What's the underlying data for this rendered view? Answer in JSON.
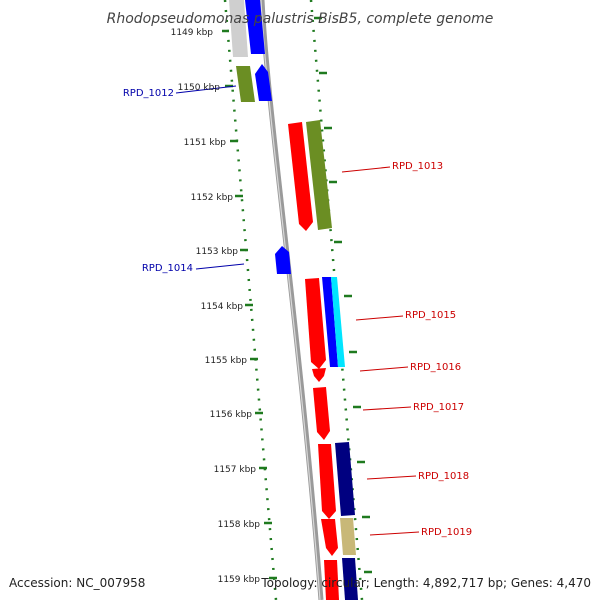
{
  "title": "Rhodopseudomonas palustris BisB5, complete genome",
  "accession_label": "Accession: NC_007958",
  "topology_label": "Topology: circular; Length: 4,892,717 bp; Genes: 4,470",
  "colors": {
    "backbone": "#9a9a9a",
    "tick_dot": "#1f7a1f",
    "label_forward": "#0000aa",
    "label_reverse": "#cc0000",
    "gene_red": "#ff0000",
    "gene_blue": "#0000ff",
    "gene_olive": "#6b8e23",
    "gene_navy": "#000080",
    "gene_cyan": "#00e5ff",
    "gene_khaki": "#c8b878",
    "gene_grey": "#cfcfcf"
  },
  "kbp_labels": [
    "1149 kbp",
    "1150 kbp",
    "1151 kbp",
    "1152 kbp",
    "1153 kbp",
    "1154 kbp",
    "1155 kbp",
    "1156 kbp",
    "1157 kbp",
    "1158 kbp",
    "1159 kbp"
  ],
  "gene_labels": [
    {
      "id": "g1012",
      "text": "RPD_1012",
      "color": "label_forward"
    },
    {
      "id": "g1013",
      "text": "RPD_1013",
      "color": "label_reverse"
    },
    {
      "id": "g1014",
      "text": "RPD_1014",
      "color": "label_forward"
    },
    {
      "id": "g1015",
      "text": "RPD_1015",
      "color": "label_reverse"
    },
    {
      "id": "g1016",
      "text": "RPD_1016",
      "color": "label_reverse"
    },
    {
      "id": "g1017",
      "text": "RPD_1017",
      "color": "label_reverse"
    },
    {
      "id": "g1018",
      "text": "RPD_1018",
      "color": "label_reverse"
    },
    {
      "id": "g1019",
      "text": "RPD_1019",
      "color": "label_reverse"
    }
  ]
}
